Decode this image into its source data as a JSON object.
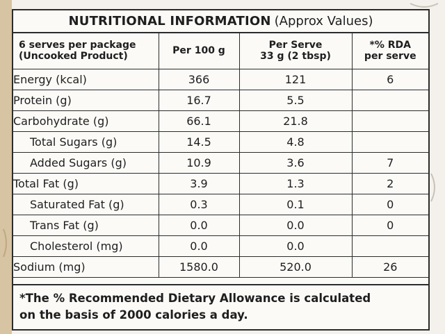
{
  "title": {
    "bold": "NUTRITIONAL INFORMATION",
    "sub": "(Approx Values)"
  },
  "columns": {
    "col1_line1": "6 serves per package",
    "col1_line2": "(Uncooked Product)",
    "col2": "Per 100 g",
    "col3_line1": "Per Serve",
    "col3_line2": "33 g (2 tbsp)",
    "col4_line1": "*% RDA",
    "col4_line2": "per serve"
  },
  "rows": [
    {
      "name": "Energy (kcal)",
      "per100": "366",
      "perServe": "121",
      "rda": "6"
    },
    {
      "name": "Protein (g)",
      "per100": "16.7",
      "perServe": "5.5",
      "rda": ""
    },
    {
      "name": "Carbohydrate (g)",
      "per100": "66.1",
      "perServe": "21.8",
      "rda": ""
    },
    {
      "name": "Total Sugars (g)",
      "per100": "14.5",
      "perServe": "4.8",
      "rda": ""
    },
    {
      "name": "Added Sugars (g)",
      "per100": "10.9",
      "perServe": "3.6",
      "rda": "7"
    },
    {
      "name": "Total Fat (g)",
      "per100": "3.9",
      "perServe": "1.3",
      "rda": "2"
    },
    {
      "name": "Saturated Fat (g)",
      "per100": "0.3",
      "perServe": "0.1",
      "rda": "0"
    },
    {
      "name": "Trans Fat (g)",
      "per100": "0.0",
      "perServe": "0.0",
      "rda": "0"
    },
    {
      "name": "Cholesterol (mg)",
      "per100": "0.0",
      "perServe": "0.0",
      "rda": ""
    },
    {
      "name": "Sodium (mg)",
      "per100": "1580.0",
      "perServe": "520.0",
      "rda": "26"
    }
  ],
  "footnote": {
    "line1": "*The % Recommended Dietary Allowance is calculated",
    "line2": "on the basis of 2000 calories a day."
  }
}
